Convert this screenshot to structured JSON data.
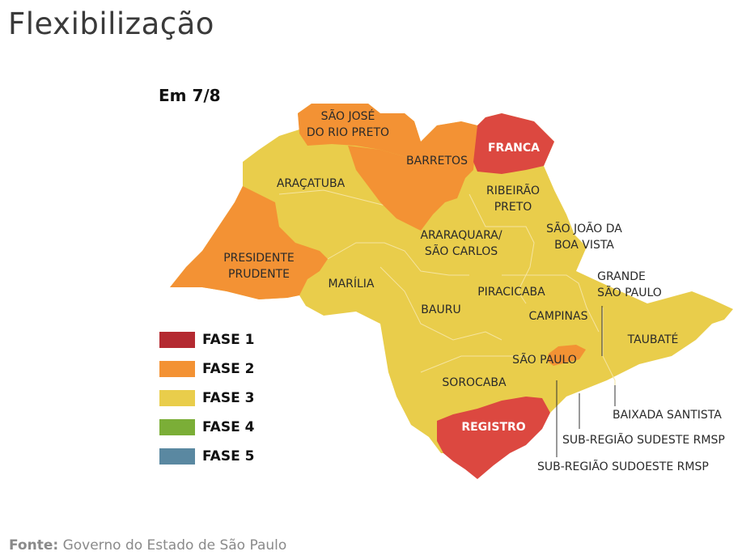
{
  "title": "Flexibilização",
  "date_label": "Em 7/8",
  "colors": {
    "fase1": "#b42a31",
    "fase2": "#f39234",
    "fase3": "#e9cd4b",
    "fase4": "#7bae37",
    "fase5": "#5a88a1",
    "registro_franca": "#dc4840"
  },
  "regions": {
    "sao_jose_do_rio_preto": [
      "SÃO JOSÉ",
      "DO RIO PRETO"
    ],
    "barretos": "BARRETOS",
    "franca": "FRANCA",
    "aracatuba": "ARAÇATUBA",
    "ribeirao_preto": [
      "RIBEIRÃO",
      "PRETO"
    ],
    "presidente_prudente": [
      "PRESIDENTE",
      "PRUDENTE"
    ],
    "araraquara_sao_carlos": [
      "ARARAQUARA/",
      "SÃO CARLOS"
    ],
    "sao_joao_da_boa_vista": [
      "SÃO JOÃO DA",
      "BOA VISTA"
    ],
    "marilia": "MARÍLIA",
    "grande_sao_paulo": [
      "GRANDE",
      "SÃO PAULO"
    ],
    "piracicaba": "PIRACICABA",
    "bauru": "BAURU",
    "campinas": "CAMPINAS",
    "taubate": "TAUBATÉ",
    "sao_paulo": "SÃO PAULO",
    "sorocaba": "SOROCABA",
    "baixada_santista": "BAIXADA SANTISTA",
    "registro": "REGISTRO",
    "sub_regiao_sudeste": "SUB-REGIÃO SUDESTE RMSP",
    "sub_regiao_sudoeste": "SUB-REGIÃO SUDOESTE RMSP"
  },
  "legend": [
    {
      "label": "FASE 1",
      "color": "#b42a31"
    },
    {
      "label": "FASE 2",
      "color": "#f39234"
    },
    {
      "label": "FASE 3",
      "color": "#e9cd4b"
    },
    {
      "label": "FASE 4",
      "color": "#7bae37"
    },
    {
      "label": "FASE 5",
      "color": "#5a88a1"
    }
  ],
  "source": {
    "label": "Fonte:",
    "text": "Governo do Estado de São Paulo"
  }
}
